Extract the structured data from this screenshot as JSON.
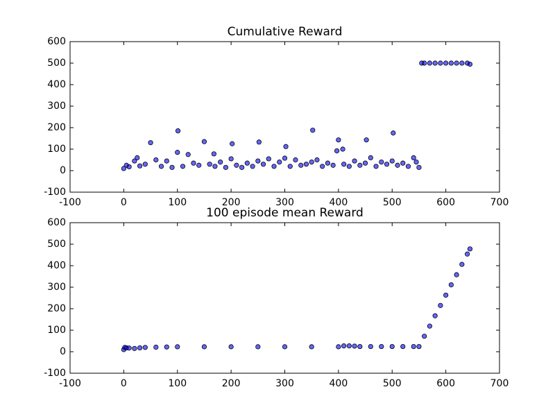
{
  "chart_data": [
    {
      "type": "scatter",
      "title": "Cumulative Reward",
      "color": "#0000ff",
      "x": [
        0,
        5,
        10,
        20,
        25,
        30,
        40,
        50,
        60,
        70,
        80,
        90,
        100,
        101,
        110,
        120,
        130,
        140,
        150,
        160,
        168,
        170,
        180,
        190,
        200,
        202,
        210,
        220,
        230,
        240,
        250,
        252,
        260,
        270,
        280,
        290,
        300,
        302,
        310,
        320,
        330,
        340,
        350,
        352,
        360,
        370,
        380,
        390,
        397,
        400,
        408,
        410,
        420,
        430,
        440,
        450,
        452,
        460,
        470,
        480,
        490,
        500,
        502,
        510,
        520,
        530,
        540,
        545,
        550,
        555,
        560,
        570,
        580,
        590,
        600,
        610,
        620,
        630,
        640,
        645
      ],
      "values": [
        10,
        25,
        18,
        45,
        60,
        22,
        30,
        130,
        50,
        20,
        45,
        15,
        85,
        185,
        20,
        75,
        35,
        25,
        135,
        30,
        78,
        20,
        40,
        15,
        55,
        125,
        25,
        15,
        35,
        20,
        45,
        133,
        30,
        55,
        20,
        40,
        58,
        112,
        20,
        50,
        25,
        30,
        40,
        188,
        50,
        20,
        35,
        25,
        92,
        143,
        100,
        30,
        20,
        45,
        25,
        35,
        143,
        60,
        20,
        40,
        30,
        45,
        175,
        25,
        35,
        20,
        60,
        40,
        15,
        500,
        500,
        500,
        500,
        500,
        500,
        500,
        500,
        500,
        500,
        495
      ],
      "xlim": [
        -100,
        700
      ],
      "ylim": [
        -100,
        600
      ],
      "xticks": [
        -100,
        0,
        100,
        200,
        300,
        400,
        500,
        600,
        700
      ],
      "yticks": [
        -100,
        0,
        100,
        200,
        300,
        400,
        500,
        600
      ]
    },
    {
      "type": "scatter",
      "title": "100 episode mean Reward",
      "color": "#0000ff",
      "x": [
        0,
        2,
        5,
        10,
        20,
        30,
        40,
        60,
        80,
        100,
        150,
        200,
        250,
        300,
        350,
        400,
        410,
        420,
        430,
        440,
        460,
        480,
        500,
        520,
        540,
        550,
        560,
        570,
        580,
        590,
        600,
        610,
        620,
        630,
        640,
        645
      ],
      "values": [
        10,
        20,
        18,
        17,
        15,
        18,
        20,
        21,
        22,
        23,
        23,
        23,
        23,
        23,
        23,
        23,
        27,
        27,
        26,
        24,
        24,
        24,
        24,
        24,
        24,
        24,
        72,
        119,
        167,
        215,
        263,
        311,
        358,
        406,
        454,
        478
      ],
      "xlim": [
        -100,
        700
      ],
      "ylim": [
        -100,
        600
      ],
      "xticks": [
        -100,
        0,
        100,
        200,
        300,
        400,
        500,
        600,
        700
      ],
      "yticks": [
        -100,
        0,
        100,
        200,
        300,
        400,
        500,
        600
      ]
    }
  ]
}
